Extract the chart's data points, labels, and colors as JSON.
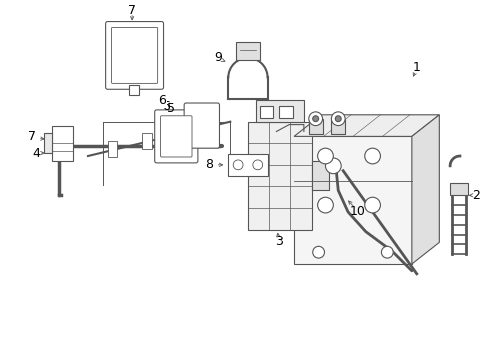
{
  "background_color": "#ffffff",
  "line_color": "#555555",
  "text_color": "#000000",
  "fig_width": 4.9,
  "fig_height": 3.6,
  "dpi": 100
}
